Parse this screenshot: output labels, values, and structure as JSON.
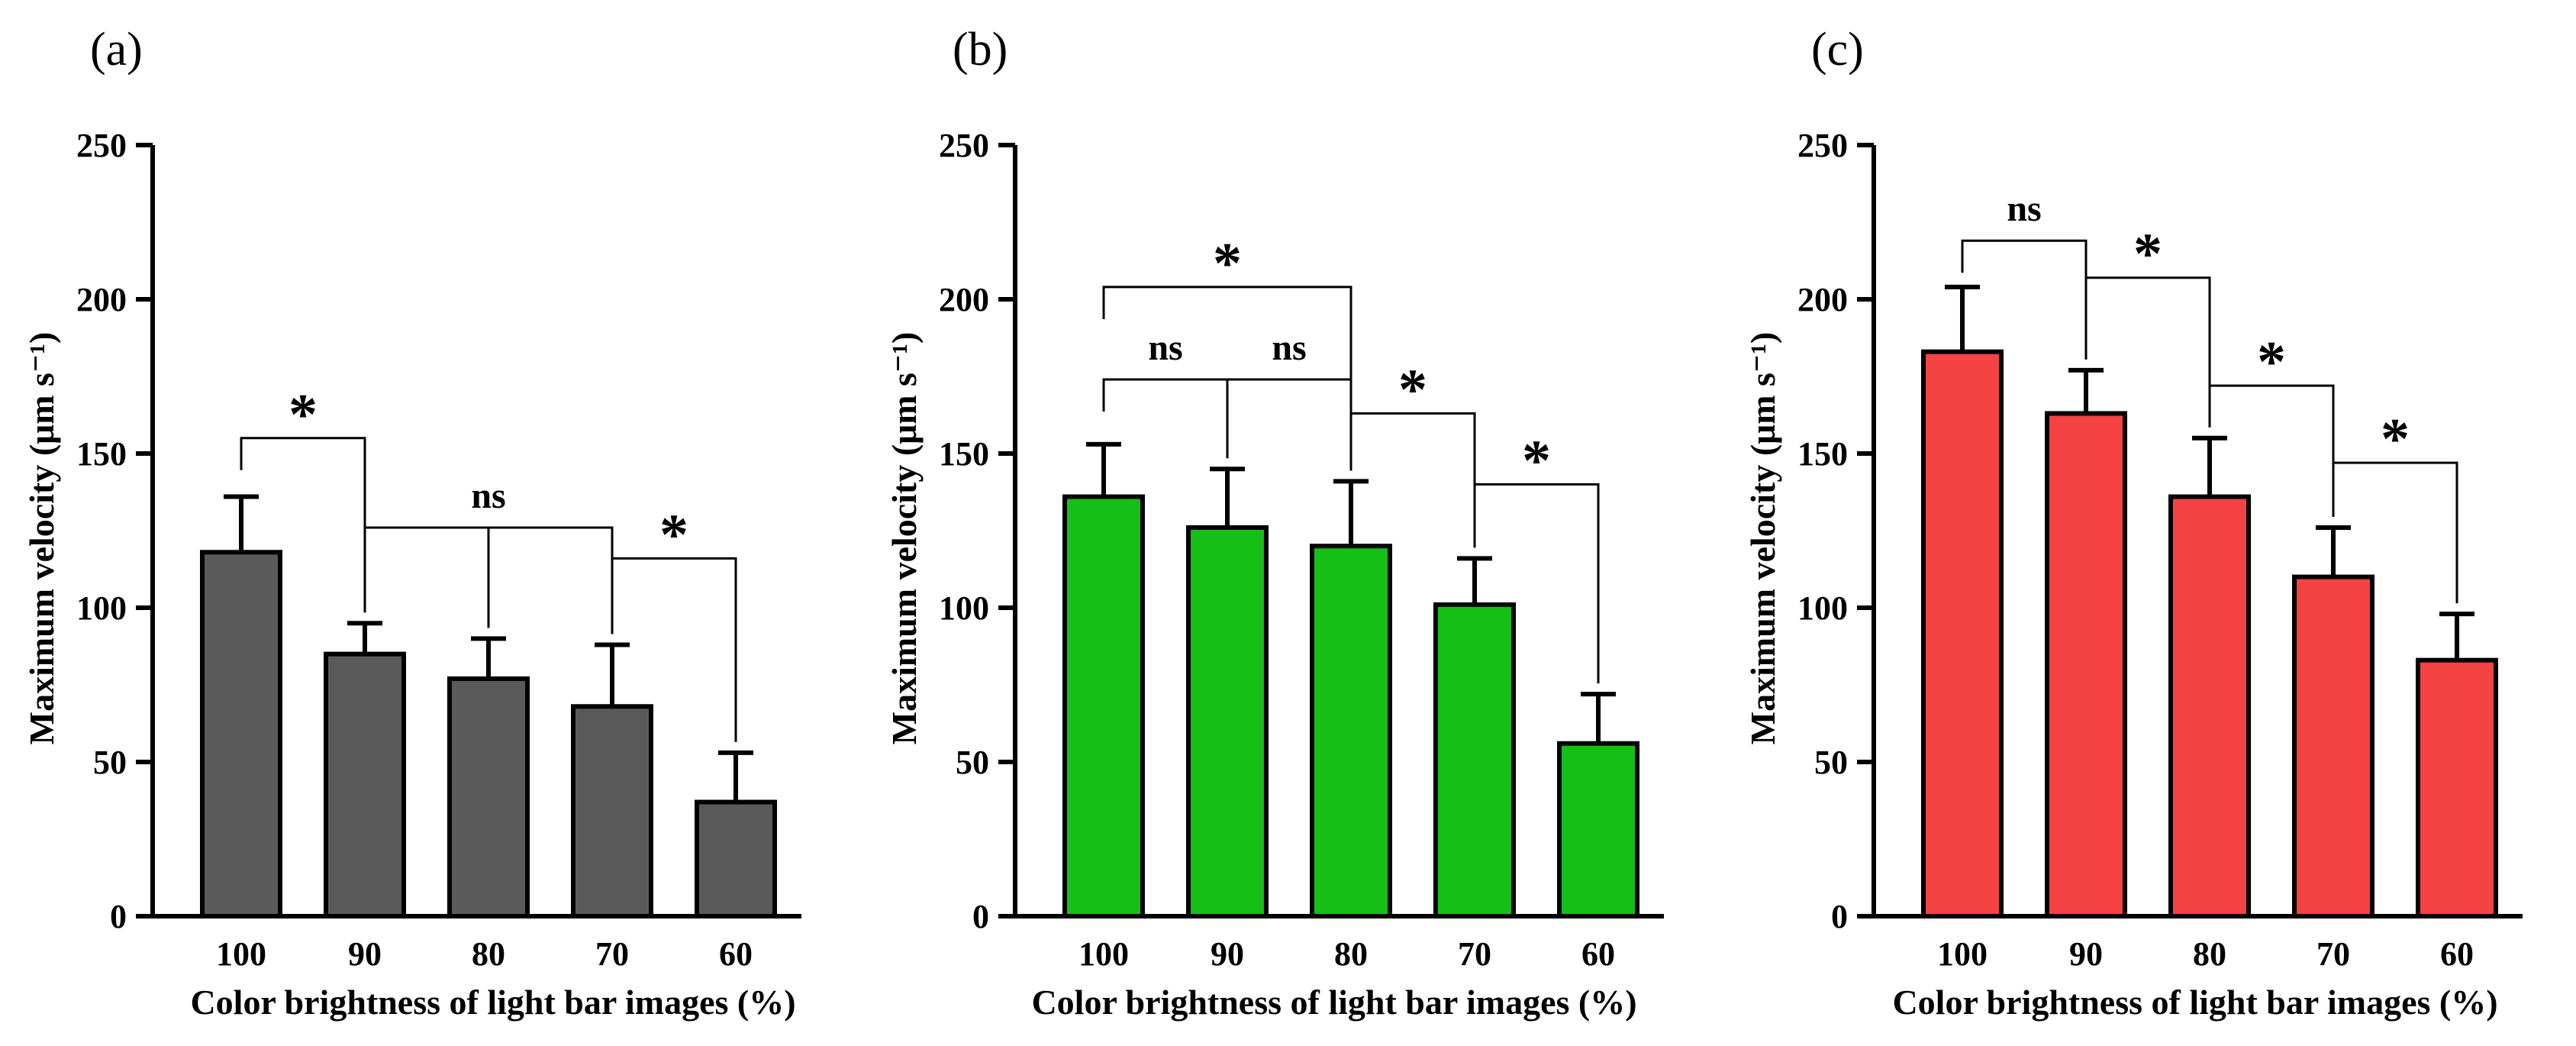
{
  "chart_data": [
    {
      "panel_label": "(a)",
      "type": "bar",
      "bar_color": "#5a5a5a",
      "categories": [
        "100",
        "90",
        "80",
        "70",
        "60"
      ],
      "values": [
        118,
        85,
        77,
        68,
        37
      ],
      "errors": [
        18,
        10,
        13,
        20,
        16
      ],
      "xlabel": "Color brightness of light bar images (%)",
      "ylabel": "Maximum velocity (μm s⁻¹)",
      "ylim": [
        0,
        250
      ],
      "yticks": [
        "0",
        "50",
        "100",
        "150",
        "200",
        "250"
      ],
      "brackets": [
        {
          "from": 0,
          "to": 1,
          "level": 155,
          "label": "*"
        },
        {
          "from": 1,
          "to": 3,
          "level": 126,
          "label": "ns",
          "inner": [
            2
          ]
        },
        {
          "from": 3,
          "to": 4,
          "level": 116,
          "label": "*"
        }
      ]
    },
    {
      "panel_label": "(b)",
      "type": "bar",
      "bar_color": "#16bf16",
      "categories": [
        "100",
        "90",
        "80",
        "70",
        "60"
      ],
      "values": [
        136,
        126,
        120,
        101,
        56
      ],
      "errors": [
        17,
        19,
        21,
        15,
        16
      ],
      "xlabel": "Color brightness of light bar images (%)",
      "ylabel": "Maximum velocity (μm s⁻¹)",
      "ylim": [
        0,
        250
      ],
      "yticks": [
        "0",
        "50",
        "100",
        "150",
        "200",
        "250"
      ],
      "brackets": [
        {
          "from": 0,
          "to": 2,
          "level": 204,
          "label": "*"
        },
        {
          "from": 0,
          "to": 1,
          "level": 174,
          "label": "ns"
        },
        {
          "from": 1,
          "to": 2,
          "level": 174,
          "label": "ns"
        },
        {
          "from": 2,
          "to": 3,
          "level": 163,
          "label": "*"
        },
        {
          "from": 3,
          "to": 4,
          "level": 140,
          "label": "*"
        }
      ]
    },
    {
      "panel_label": "(c)",
      "type": "bar",
      "bar_color": "#f54242",
      "categories": [
        "100",
        "90",
        "80",
        "70",
        "60"
      ],
      "values": [
        183,
        163,
        136,
        110,
        83
      ],
      "errors": [
        21,
        14,
        19,
        16,
        15
      ],
      "xlabel": "Color brightness of light bar images (%)",
      "ylabel": "Maximum velocity (μm s⁻¹)",
      "ylim": [
        0,
        250
      ],
      "yticks": [
        "0",
        "50",
        "100",
        "150",
        "200",
        "250"
      ],
      "brackets": [
        {
          "from": 0,
          "to": 1,
          "level": 219,
          "label": "ns"
        },
        {
          "from": 1,
          "to": 2,
          "level": 207,
          "label": "*"
        },
        {
          "from": 2,
          "to": 3,
          "level": 172,
          "label": "*"
        },
        {
          "from": 3,
          "to": 4,
          "level": 147,
          "label": "*"
        }
      ]
    }
  ]
}
